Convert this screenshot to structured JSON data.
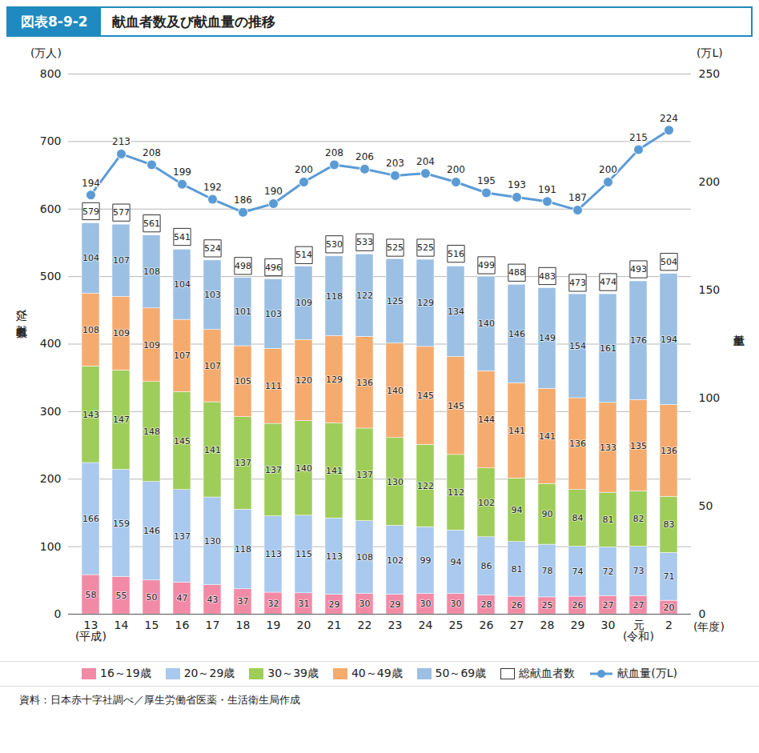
{
  "chart_data": {
    "type": "bar",
    "figure_number": "図表8-9-2",
    "title": "献血者数及び献血量の推移",
    "source": "資料：日本赤十字社調べ／厚生労働省医薬・生活衛生局作成",
    "y_unit": "(万人)",
    "y_label": "延べ献血者数",
    "y2_unit": "(万L)",
    "y2_label": "献血量",
    "x_label": "(年度)",
    "categories": [
      "13\n(平成)",
      "14",
      "15",
      "16",
      "17",
      "18",
      "19",
      "20",
      "21",
      "22",
      "23",
      "24",
      "25",
      "26",
      "27",
      "28",
      "29",
      "30",
      "元\n(令和)",
      "2"
    ],
    "stacked": true,
    "data_labels": true,
    "grid": true,
    "legend": "bottom",
    "ylim": [
      0,
      800
    ],
    "yticks": [
      0,
      100,
      200,
      300,
      400,
      500,
      600,
      700,
      800
    ],
    "y2lim": [
      0,
      250
    ],
    "y2ticks": [
      0,
      50,
      100,
      150,
      200,
      250
    ],
    "series": [
      {
        "name": "16～19歳",
        "type": "bar",
        "color": "#f28aa6",
        "values": [
          58,
          55,
          50,
          47,
          43,
          37,
          32,
          31,
          29,
          30,
          29,
          30,
          30,
          28,
          26,
          25,
          26,
          27,
          27,
          20
        ]
      },
      {
        "name": "20～29歳",
        "type": "bar",
        "color": "#a9c9ee",
        "values": [
          166,
          159,
          146,
          137,
          130,
          118,
          113,
          115,
          113,
          108,
          102,
          99,
          94,
          86,
          81,
          78,
          74,
          72,
          73,
          71
        ]
      },
      {
        "name": "30～39歳",
        "type": "bar",
        "color": "#9fcd5a",
        "values": [
          143,
          147,
          148,
          145,
          141,
          137,
          137,
          140,
          141,
          137,
          130,
          122,
          112,
          102,
          94,
          90,
          84,
          81,
          82,
          83
        ]
      },
      {
        "name": "40～49歳",
        "type": "bar",
        "color": "#f6ab6e",
        "values": [
          108,
          109,
          109,
          107,
          107,
          105,
          111,
          120,
          129,
          136,
          140,
          145,
          145,
          144,
          141,
          141,
          136,
          133,
          135,
          136
        ]
      },
      {
        "name": "50～69歳",
        "type": "bar",
        "color": "#9cc0e4",
        "values": [
          104,
          107,
          108,
          104,
          103,
          101,
          103,
          109,
          118,
          122,
          125,
          129,
          134,
          140,
          146,
          149,
          154,
          161,
          176,
          194
        ]
      },
      {
        "name": "総献血者数",
        "type": "total",
        "color": "#ffffff",
        "values": [
          579,
          577,
          561,
          541,
          524,
          498,
          496,
          514,
          530,
          533,
          525,
          525,
          516,
          499,
          488,
          483,
          473,
          474,
          493,
          504
        ]
      },
      {
        "name": "献血量(万L)",
        "type": "line",
        "axis": "y2",
        "marker": "circle",
        "color": "#5b9bd5",
        "values": [
          194,
          213,
          208,
          199,
          192,
          186,
          190,
          200,
          208,
          206,
          203,
          204,
          200,
          195,
          193,
          191,
          187,
          200,
          215,
          224
        ]
      }
    ]
  }
}
